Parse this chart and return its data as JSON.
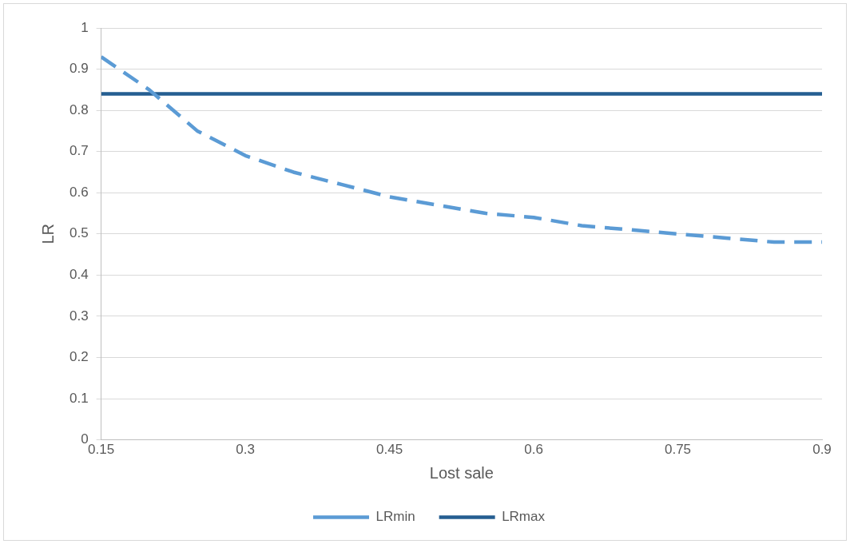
{
  "chart_data": {
    "type": "line",
    "xlabel": "Lost sale",
    "ylabel": "LR",
    "x": [
      0.15,
      0.2,
      0.25,
      0.3,
      0.35,
      0.4,
      0.45,
      0.5,
      0.55,
      0.6,
      0.65,
      0.7,
      0.75,
      0.8,
      0.85,
      0.9
    ],
    "series": [
      {
        "name": "LRmin",
        "color": "#5b9bd5",
        "line_style": "dashed",
        "values": [
          0.93,
          0.85,
          0.75,
          0.69,
          0.65,
          0.62,
          0.59,
          0.57,
          0.55,
          0.54,
          0.52,
          0.51,
          0.5,
          0.49,
          0.48,
          0.48
        ]
      },
      {
        "name": "LRmax",
        "color": "#255e91",
        "line_style": "solid",
        "values": [
          0.84,
          0.84,
          0.84,
          0.84,
          0.84,
          0.84,
          0.84,
          0.84,
          0.84,
          0.84,
          0.84,
          0.84,
          0.84,
          0.84,
          0.84,
          0.84
        ]
      }
    ],
    "xlim": [
      0.15,
      0.9
    ],
    "xticks": [
      0.15,
      0.3,
      0.45,
      0.6,
      0.75,
      0.9
    ],
    "ylim": [
      0,
      1
    ],
    "yticks": [
      0,
      0.1,
      0.2,
      0.3,
      0.4,
      0.5,
      0.6,
      0.7,
      0.8,
      0.9,
      1
    ],
    "grid": "y",
    "legend": "bottom",
    "marker": "none"
  }
}
